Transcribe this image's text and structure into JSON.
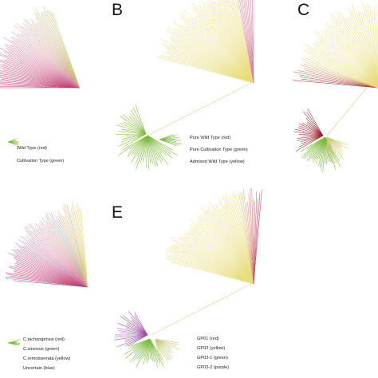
{
  "colors": {
    "red": "#c0306a",
    "pink": "#d47a9e",
    "green": "#7cb93c",
    "yellow": "#e8dc7a",
    "olive": "#c9c97a",
    "purple": "#9a4fa0",
    "blue": "#7fb0d8",
    "dark_red": "#9e1f2e",
    "trunk": "#d9d08a"
  },
  "panels": [
    {
      "id": "A",
      "letter": "",
      "legend": [
        "Wild Type (red)",
        "Cultivation Type (green)"
      ]
    },
    {
      "id": "B",
      "letter": "B",
      "legend": [
        "Pure Wild Type (red)",
        "Pure Cultivation Type (green)",
        "Admixed Wild Type (yellow)"
      ]
    },
    {
      "id": "C",
      "letter": "C",
      "legend": []
    },
    {
      "id": "D",
      "letter": "",
      "legend": [
        "C.tachangensis (red)",
        "C.sinensis (green)",
        "C.remotiserrata (yellow)",
        "Uncertain (blue)"
      ]
    },
    {
      "id": "E",
      "letter": "E",
      "legend": [
        "GP01 (red)",
        "GP02 (yellow)",
        "GP03-1 (green)",
        "GP03-2 (purple)"
      ]
    }
  ]
}
